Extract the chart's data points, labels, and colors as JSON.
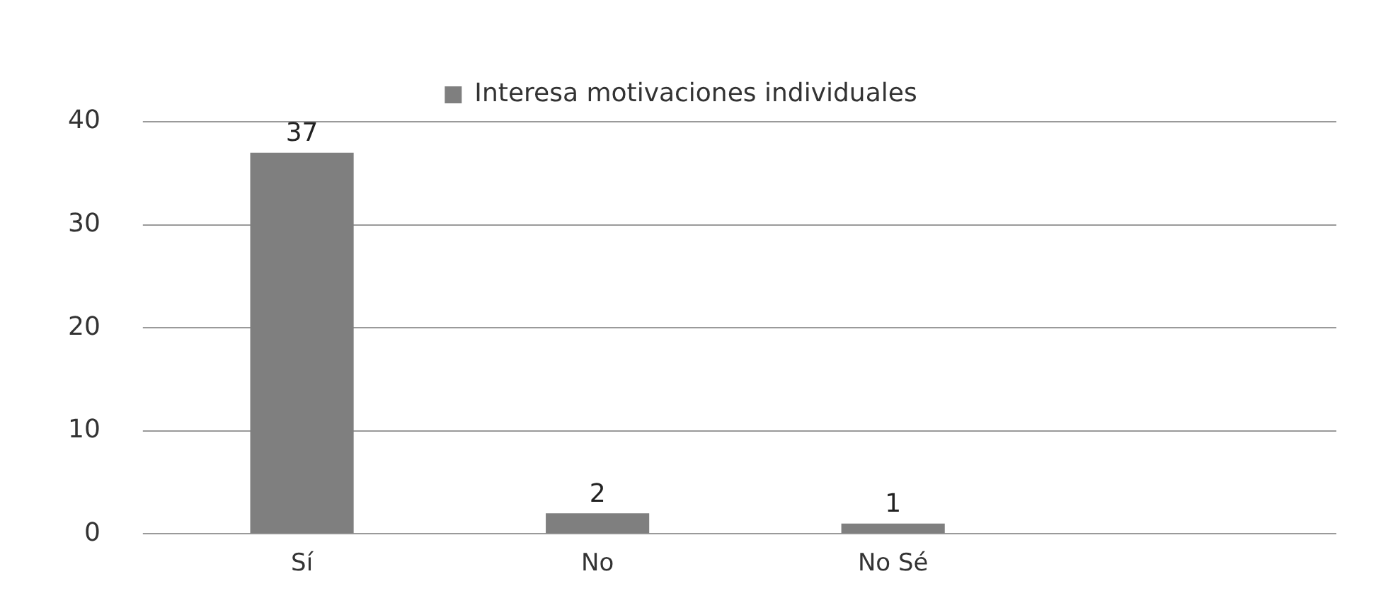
{
  "chart_data": {
    "type": "bar",
    "categories": [
      "Sí",
      "No",
      "No Sé",
      null
    ],
    "series": [
      {
        "name": "Interesa motivaciones individuales",
        "color": "#7f7f7f",
        "values": [
          37,
          2,
          1,
          null
        ]
      }
    ],
    "ylim": [
      0,
      40
    ],
    "yticks": [
      0,
      10,
      20,
      30,
      40
    ],
    "grid": "y",
    "legend": "top",
    "data_labels": true
  }
}
